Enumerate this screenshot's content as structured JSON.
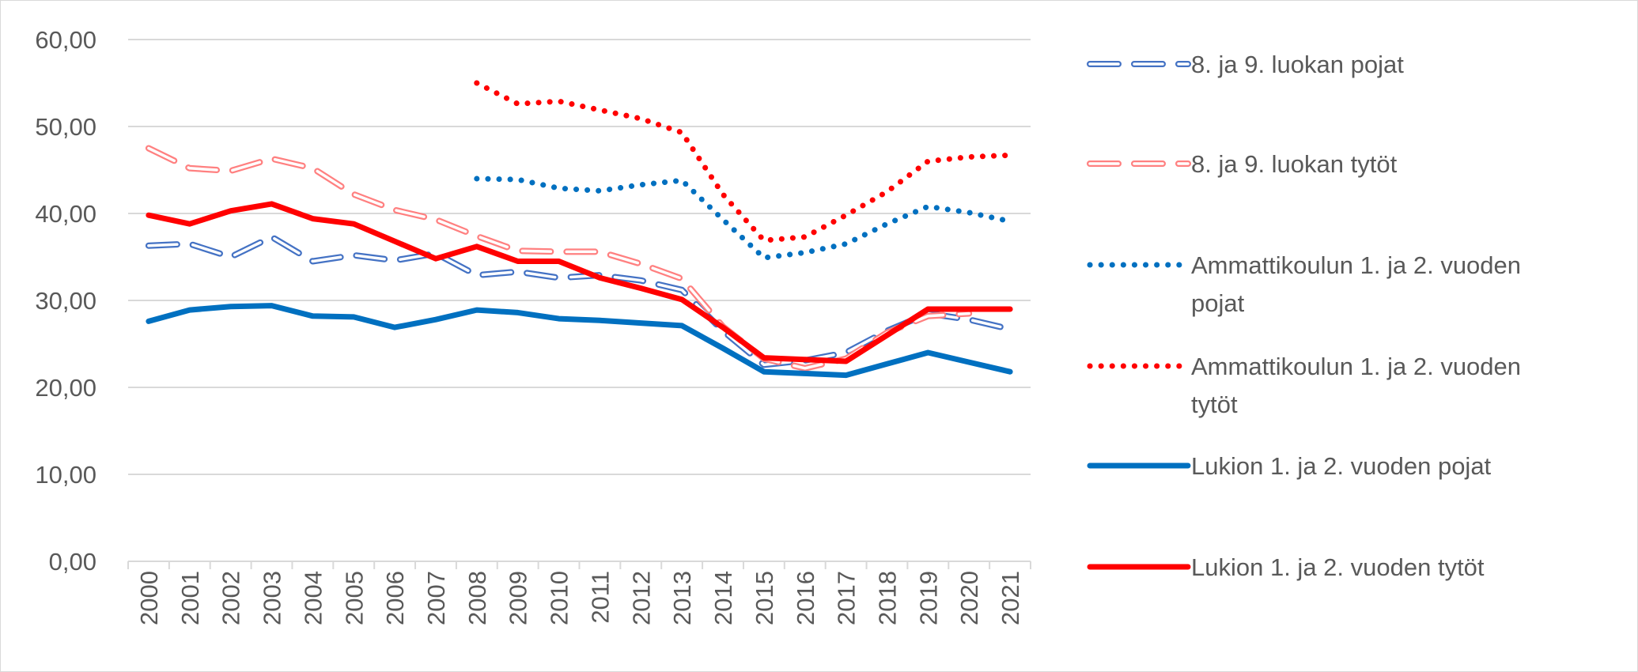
{
  "chart_data": {
    "type": "line",
    "title": "",
    "xlabel": "",
    "ylabel": "",
    "ylim": [
      0,
      60
    ],
    "ytick_values": [
      0,
      10,
      20,
      30,
      40,
      50,
      60
    ],
    "ytick_labels": [
      "0,00",
      "10,00",
      "20,00",
      "30,00",
      "40,00",
      "50,00",
      "60,00"
    ],
    "grid": "horizontal",
    "legend_position": "right",
    "categories": [
      "2000",
      "2001",
      "2002",
      "2003",
      "2004",
      "2005",
      "2006",
      "2007",
      "2008",
      "2009",
      "2010",
      "2011",
      "2012",
      "2013",
      "2014",
      "2015",
      "2016",
      "2017",
      "2018",
      "2019",
      "2020",
      "2021"
    ],
    "series": [
      {
        "name": "8. ja 9. luokan pojat",
        "legend_lines": [
          "8. ja 9. luokan pojat"
        ],
        "style": "hollow-dash",
        "color": "#4472c4",
        "values": [
          36.3,
          36.5,
          35.0,
          37.3,
          34.5,
          35.2,
          34.6,
          35.4,
          32.9,
          33.3,
          32.6,
          32.9,
          32.3,
          31.2,
          26.5,
          22.6,
          23.1,
          24.0,
          26.5,
          28.5,
          27.8,
          26.7
        ]
      },
      {
        "name": "8. ja 9. luokan tytöt",
        "legend_lines": [
          "8. ja 9. luokan tytöt"
        ],
        "style": "hollow-dash",
        "color": "#ff8080",
        "values": [
          47.5,
          45.2,
          44.9,
          46.3,
          45.2,
          42.2,
          40.4,
          39.3,
          37.4,
          35.7,
          35.6,
          35.6,
          34.2,
          32.5,
          27.0,
          23.3,
          22.2,
          23.3,
          26.3,
          28.2,
          28.5,
          null
        ]
      },
      {
        "name": "Ammattikoulun 1. ja 2. vuoden pojat",
        "legend_lines": [
          "Ammattikoulun 1. ja 2. vuoden",
          "pojat"
        ],
        "style": "dotted",
        "color": "#0070c0",
        "values": [
          null,
          null,
          null,
          null,
          null,
          null,
          null,
          null,
          44.0,
          43.9,
          42.9,
          42.6,
          43.3,
          43.8,
          39.3,
          34.9,
          35.5,
          36.5,
          38.8,
          40.8,
          40.1,
          39.1
        ]
      },
      {
        "name": "Ammattikoulun 1. ja 2. vuoden tytöt",
        "legend_lines": [
          "Ammattikoulun 1. ja 2. vuoden",
          "tytöt"
        ],
        "style": "dotted",
        "color": "#ff0000",
        "values": [
          null,
          null,
          null,
          null,
          null,
          null,
          null,
          null,
          55.0,
          52.6,
          52.9,
          51.9,
          50.9,
          49.3,
          42.2,
          36.9,
          37.3,
          39.8,
          42.5,
          46.0,
          46.5,
          46.7
        ]
      },
      {
        "name": "Lukion 1. ja 2. vuoden pojat",
        "legend_lines": [
          "Lukion 1. ja 2. vuoden pojat"
        ],
        "style": "solid",
        "color": "#0070c0",
        "values": [
          27.6,
          28.9,
          29.3,
          29.4,
          28.2,
          28.1,
          26.9,
          27.8,
          28.9,
          28.6,
          27.9,
          27.7,
          27.4,
          27.1,
          24.5,
          21.8,
          21.6,
          21.4,
          22.7,
          24.0,
          22.9,
          21.8
        ]
      },
      {
        "name": "Lukion 1. ja 2. vuoden tytöt",
        "legend_lines": [
          "Lukion 1. ja 2. vuoden tytöt"
        ],
        "style": "solid",
        "color": "#ff0000",
        "values": [
          39.8,
          38.8,
          40.3,
          41.1,
          39.4,
          38.8,
          36.8,
          34.8,
          36.2,
          34.5,
          34.5,
          32.6,
          31.4,
          30.1,
          26.9,
          23.4,
          23.2,
          23.0,
          26.0,
          29.0,
          29.0,
          29.0
        ]
      }
    ]
  }
}
